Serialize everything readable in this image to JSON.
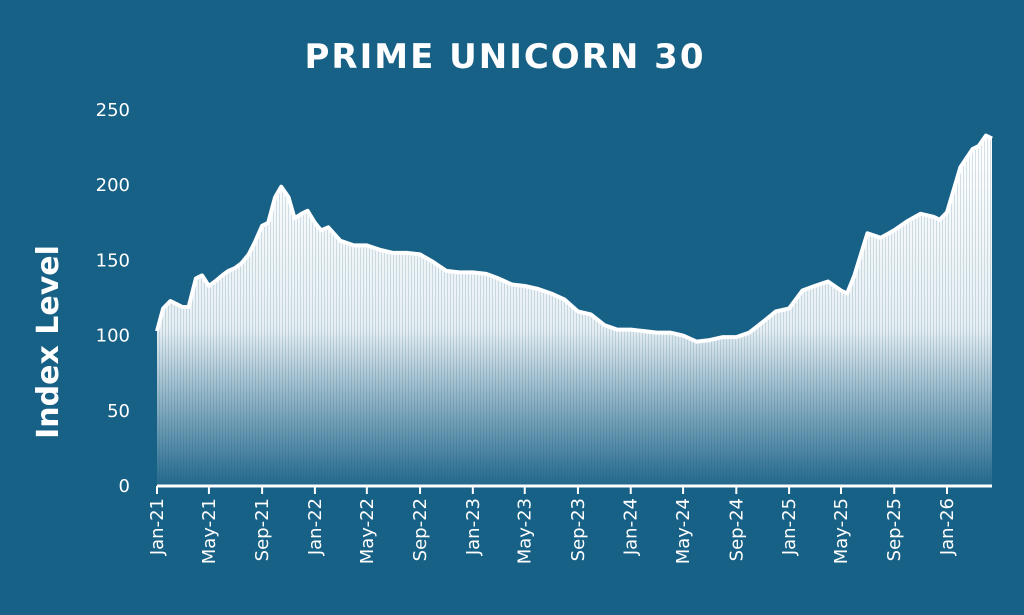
{
  "colors": {
    "background": "#176086",
    "foreground": "#ffffff"
  },
  "chart_data": {
    "type": "area",
    "title": "PRIME UNICORN 30",
    "xlabel": "",
    "ylabel": "Index Level",
    "ylim": [
      0,
      250
    ],
    "yticks": [
      0,
      50,
      100,
      150,
      200,
      250
    ],
    "xticks": [
      "Jan-21",
      "May-21",
      "Sep-21",
      "Jan-22",
      "May-22",
      "Sep-22",
      "Jan-23",
      "May-23",
      "Sep-23",
      "Jan-24",
      "May-24",
      "Sep-24",
      "Jan-25",
      "May-25",
      "Sep-25",
      "Jan-26"
    ],
    "grid": false,
    "legend": "none",
    "fill": "gradient white to background",
    "series": [
      {
        "x": [
          "2021-01-01",
          "2021-01-15",
          "2021-02-01",
          "2021-02-15",
          "2021-03-01",
          "2021-03-15",
          "2021-04-01",
          "2021-04-15",
          "2021-05-01",
          "2021-05-15",
          "2021-06-01",
          "2021-06-15",
          "2021-07-01",
          "2021-07-15",
          "2021-08-01",
          "2021-08-15",
          "2021-09-01",
          "2021-09-15",
          "2021-10-01",
          "2021-10-15",
          "2021-11-01",
          "2021-11-15",
          "2021-12-01",
          "2021-12-15",
          "2022-01-01",
          "2022-01-15",
          "2022-02-01",
          "2022-03-01",
          "2022-04-01",
          "2022-05-01",
          "2022-06-01",
          "2022-07-01",
          "2022-08-01",
          "2022-09-01",
          "2022-10-01",
          "2022-11-01",
          "2022-12-01",
          "2023-01-01",
          "2023-02-01",
          "2023-03-01",
          "2023-04-01",
          "2023-05-01",
          "2023-06-01",
          "2023-07-01",
          "2023-08-01",
          "2023-09-01",
          "2023-10-01",
          "2023-11-01",
          "2023-12-01",
          "2024-01-01",
          "2024-02-01",
          "2024-03-01",
          "2024-04-01",
          "2024-05-01",
          "2024-06-01",
          "2024-07-01",
          "2024-08-01",
          "2024-09-01",
          "2024-10-01",
          "2024-11-01",
          "2024-12-01",
          "2025-01-01",
          "2025-02-01",
          "2025-03-01",
          "2025-04-01",
          "2025-05-01",
          "2025-05-15",
          "2025-06-01",
          "2025-07-01",
          "2025-08-01",
          "2025-09-01",
          "2025-10-01",
          "2025-11-01",
          "2025-12-01",
          "2025-12-15",
          "2026-01-01",
          "2026-02-01",
          "2026-03-01",
          "2026-03-15",
          "2026-04-01",
          "2026-04-15"
        ],
        "values": [
          103,
          118,
          123,
          121,
          119,
          119,
          138,
          140,
          133,
          136,
          140,
          143,
          145,
          148,
          154,
          162,
          173,
          175,
          192,
          199,
          192,
          178,
          181,
          183,
          175,
          170,
          172,
          163,
          160,
          160,
          157,
          155,
          155,
          154,
          149,
          143,
          142,
          142,
          141,
          138,
          134,
          133,
          131,
          128,
          124,
          116,
          114,
          107,
          104,
          104,
          103,
          102,
          102,
          100,
          96,
          97,
          99,
          99,
          102,
          109,
          116,
          118,
          130,
          133,
          136,
          130,
          128,
          140,
          168,
          165,
          170,
          176,
          181,
          179,
          177,
          182,
          212,
          224,
          226,
          233,
          231
        ]
      }
    ]
  }
}
